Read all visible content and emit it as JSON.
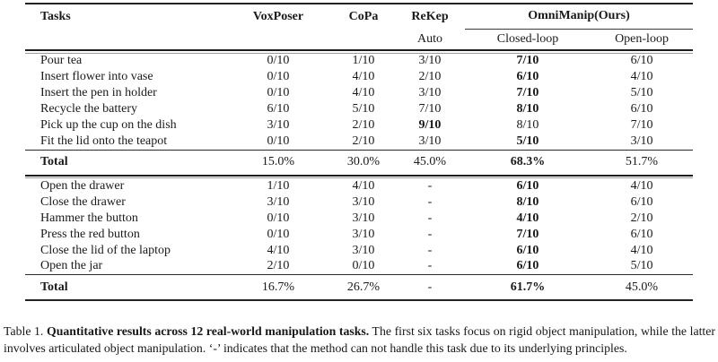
{
  "colors": {
    "text": "#1a1a1a",
    "rule_dark": "#222222",
    "rule_light": "#9a9a9a"
  },
  "table": {
    "header": {
      "tasks": "Tasks",
      "voxposer": "VoxPoser",
      "copa": "CoPa",
      "rekep": "ReKep",
      "rekep_sub": "Auto",
      "ours": "OmniManip(Ours)",
      "closed": "Closed-loop",
      "open": "Open-loop"
    },
    "sections": [
      {
        "rows": [
          {
            "task": "Pour tea",
            "values": [
              "0/10",
              "1/10",
              "3/10",
              "7/10",
              "6/10"
            ],
            "bold_index": 3
          },
          {
            "task": "Insert flower into vase",
            "values": [
              "0/10",
              "4/10",
              "2/10",
              "6/10",
              "4/10"
            ],
            "bold_index": 3
          },
          {
            "task": "Insert the pen in holder",
            "values": [
              "0/10",
              "4/10",
              "3/10",
              "7/10",
              "5/10"
            ],
            "bold_index": 3
          },
          {
            "task": "Recycle the battery",
            "values": [
              "6/10",
              "5/10",
              "7/10",
              "8/10",
              "6/10"
            ],
            "bold_index": 3
          },
          {
            "task": "Pick up the cup on the dish",
            "values": [
              "3/10",
              "2/10",
              "9/10",
              "8/10",
              "7/10"
            ],
            "bold_index": 2
          },
          {
            "task": "Fit the lid onto the teapot",
            "values": [
              "0/10",
              "2/10",
              "3/10",
              "5/10",
              "3/10"
            ],
            "bold_index": 3
          }
        ],
        "total": {
          "label": "Total",
          "values": [
            "15.0%",
            "30.0%",
            "45.0%",
            "68.3%",
            "51.7%"
          ],
          "bold_index": 3
        }
      },
      {
        "rows": [
          {
            "task": "Open the drawer",
            "values": [
              "1/10",
              "4/10",
              "-",
              "6/10",
              "4/10"
            ],
            "bold_index": 3
          },
          {
            "task": "Close the drawer",
            "values": [
              "3/10",
              "3/10",
              "-",
              "8/10",
              "6/10"
            ],
            "bold_index": 3
          },
          {
            "task": "Hammer the button",
            "values": [
              "0/10",
              "3/10",
              "-",
              "4/10",
              "2/10"
            ],
            "bold_index": 3
          },
          {
            "task": "Press the red button",
            "values": [
              "0/10",
              "3/10",
              "-",
              "7/10",
              "6/10"
            ],
            "bold_index": 3
          },
          {
            "task": "Close the lid of the laptop",
            "values": [
              "4/10",
              "3/10",
              "-",
              "6/10",
              "4/10"
            ],
            "bold_index": 3
          },
          {
            "task": "Open the jar",
            "values": [
              "2/10",
              "0/10",
              "-",
              "6/10",
              "5/10"
            ],
            "bold_index": 3
          }
        ],
        "total": {
          "label": "Total",
          "values": [
            "16.7%",
            "26.7%",
            "-",
            "61.7%",
            "45.0%"
          ],
          "bold_index": 3
        }
      }
    ]
  },
  "caption": {
    "label": "Table 1.",
    "bold": "Quantitative results across 12 real-world manipulation tasks.",
    "rest": "The first six tasks focus on rigid object manipulation, while the latter involves articulated object manipulation. ‘-’ indicates that the method can not handle this task due to its underlying principles."
  }
}
